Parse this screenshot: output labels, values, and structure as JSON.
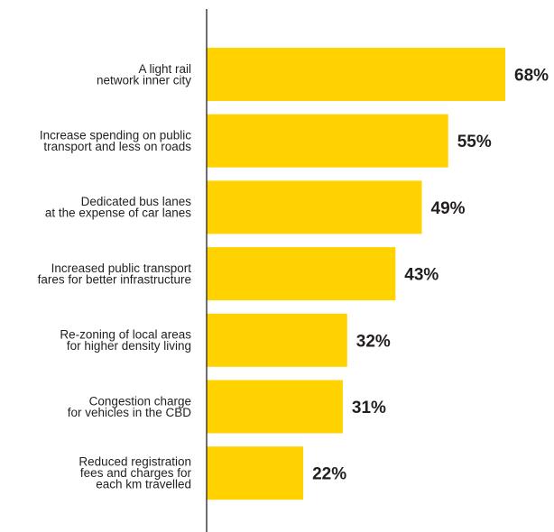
{
  "chart_data": {
    "type": "bar",
    "orientation": "horizontal",
    "categories": [
      [
        "A light rail",
        "network inner city"
      ],
      [
        "Increase spending on public",
        "transport and less on roads"
      ],
      [
        "Dedicated bus lanes",
        "at the expense of car lanes"
      ],
      [
        "Increased public transport",
        "fares for better infrastructure"
      ],
      [
        "Re-zoning of local areas",
        "for higher density living"
      ],
      [
        "Congestion charge",
        "for vehicles in the CBD"
      ],
      [
        "Reduced registration",
        "fees and charges for",
        "each km travelled"
      ]
    ],
    "values": [
      68,
      55,
      49,
      43,
      32,
      31,
      22
    ],
    "value_labels": [
      "68%",
      "55%",
      "49%",
      "43%",
      "32%",
      "31%",
      "22%"
    ],
    "xlim": [
      0,
      100
    ],
    "grid": false,
    "colors": {
      "bar": "#ffd200",
      "text": "#231f20",
      "axis": "#231f20"
    }
  }
}
